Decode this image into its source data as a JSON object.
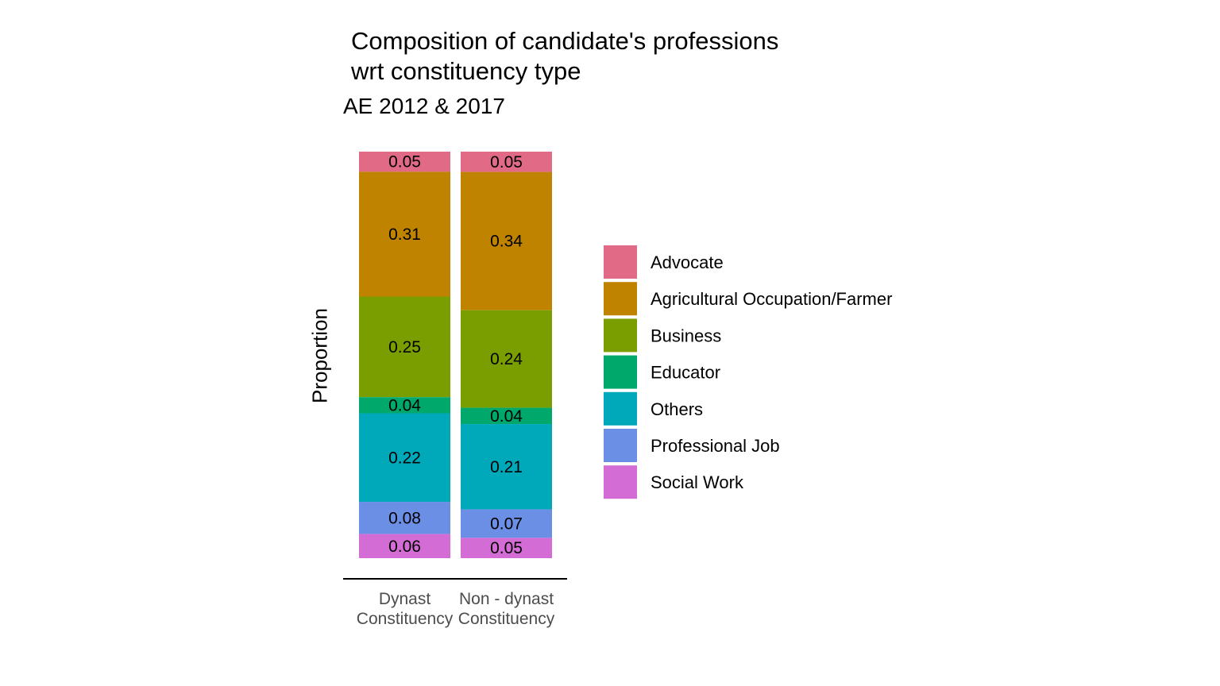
{
  "chart_data": {
    "type": "bar",
    "stacked": true,
    "title": [
      "Composition of candidate's professions",
      "wrt constituency type"
    ],
    "subtitle": "AE 2012 & 2017",
    "xlabel": "",
    "ylabel": "Proportion",
    "ylim": [
      0,
      1
    ],
    "grid": false,
    "legend_position": "right",
    "categories": [
      [
        "Dynast",
        "Constituency"
      ],
      [
        "Non - dynast",
        "Constituency"
      ]
    ],
    "series": [
      {
        "name": "Advocate",
        "color": "#E16A86",
        "values": [
          0.05,
          0.05
        ]
      },
      {
        "name": "Agricultural Occupation/Farmer",
        "color": "#C08300",
        "values": [
          0.31,
          0.34
        ]
      },
      {
        "name": "Business",
        "color": "#7A9E00",
        "values": [
          0.25,
          0.24
        ]
      },
      {
        "name": "Educator",
        "color": "#00A86B",
        "values": [
          0.04,
          0.04
        ]
      },
      {
        "name": "Others",
        "color": "#00A9BA",
        "values": [
          0.22,
          0.21
        ]
      },
      {
        "name": "Professional Job",
        "color": "#6C8FE6",
        "values": [
          0.08,
          0.07
        ]
      },
      {
        "name": "Social Work",
        "color": "#D36DD5",
        "values": [
          0.06,
          0.05
        ]
      }
    ]
  }
}
